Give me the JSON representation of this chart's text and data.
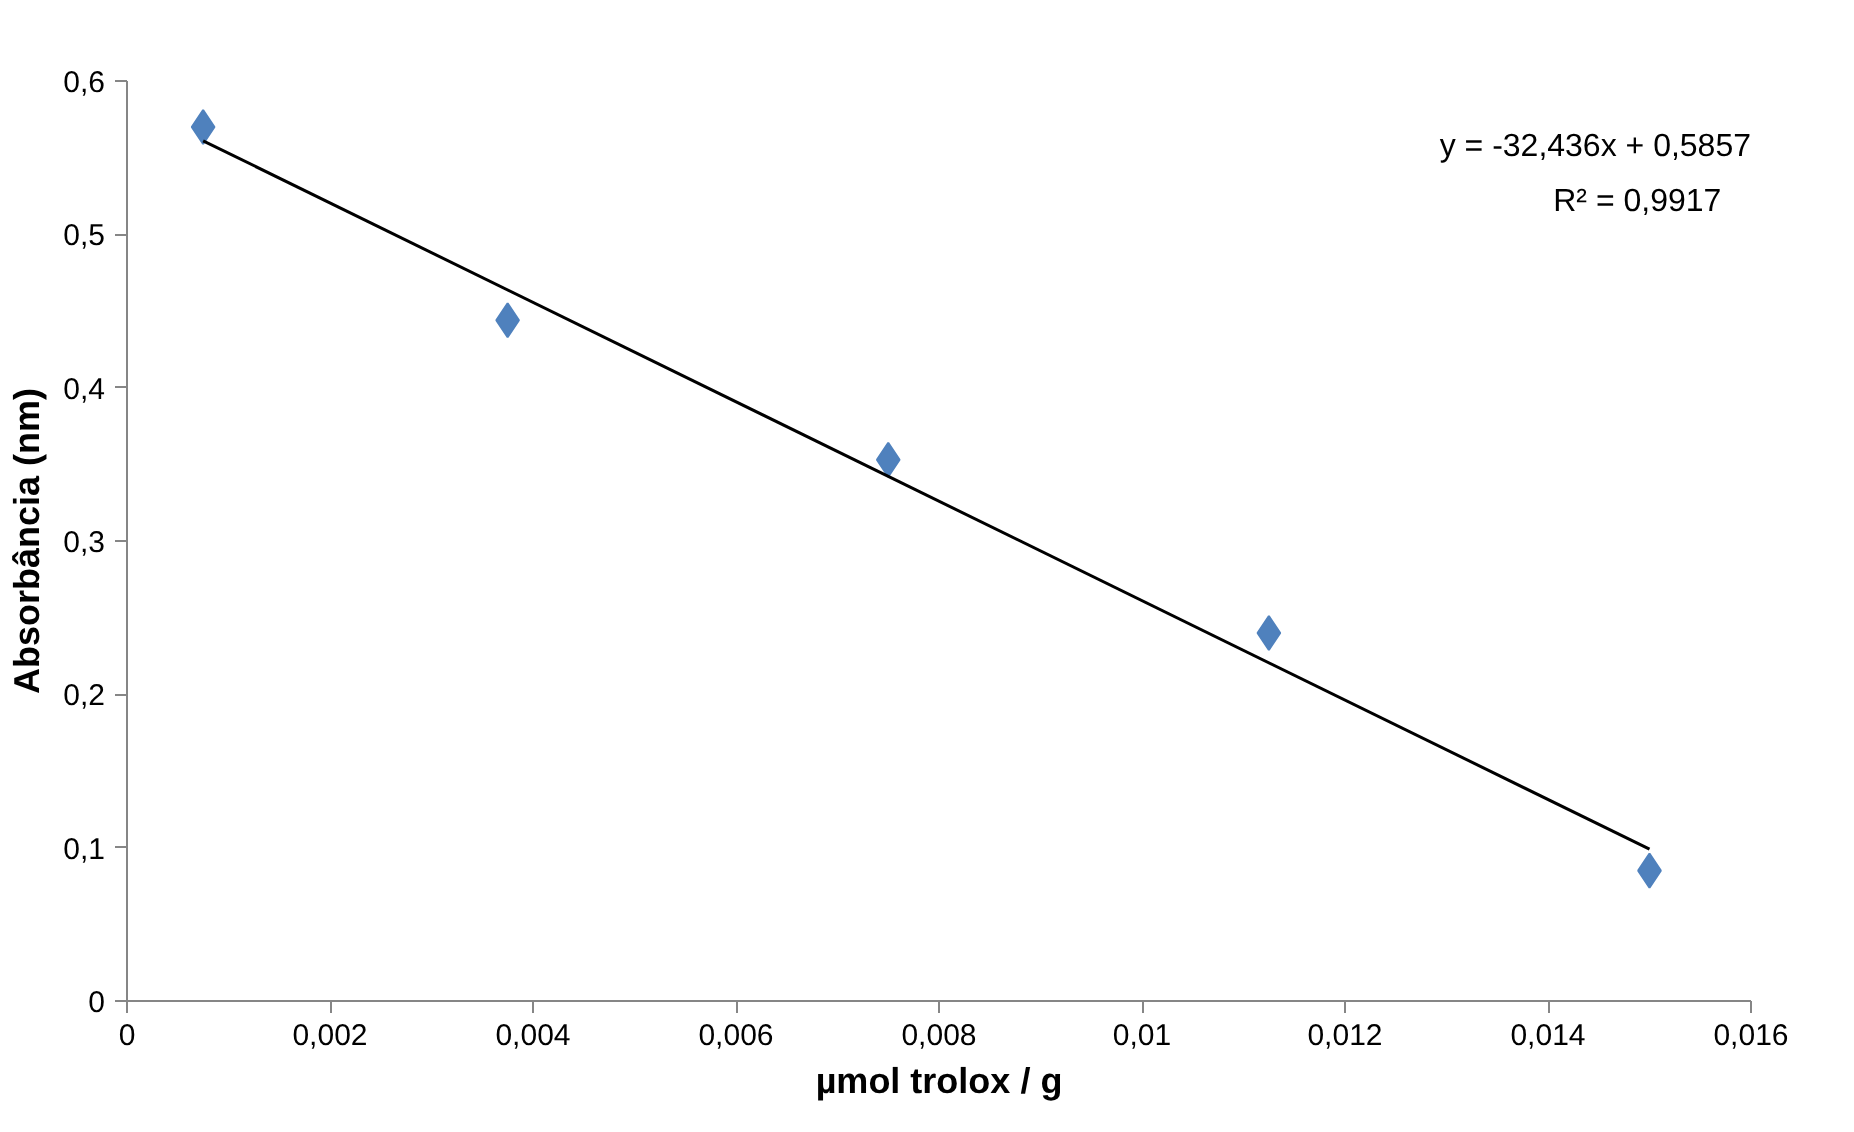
{
  "chart_data": {
    "type": "scatter",
    "xlabel": "µmol trolox / g",
    "ylabel": "Absorbância (nm)",
    "annotations": [
      "y = -32,436x + 0,5857",
      "R² = 0,9917"
    ],
    "xlim": [
      0,
      0.016
    ],
    "ylim": [
      0,
      0.6
    ],
    "xticks": [
      0,
      {
        "value": 0.002,
        "label": "0,002"
      },
      {
        "value": 0.004,
        "label": "0,004"
      },
      {
        "value": 0.006,
        "label": "0,006"
      },
      {
        "value": 0.008,
        "label": "0,008"
      },
      {
        "value": 0.01,
        "label": "0,01"
      },
      {
        "value": 0.012,
        "label": "0,012"
      },
      {
        "value": 0.014,
        "label": "0,014"
      },
      {
        "value": 0.016,
        "label": "0,016"
      }
    ],
    "yticks": [
      0,
      {
        "value": 0.1,
        "label": "0,1"
      },
      {
        "value": 0.2,
        "label": "0,2"
      },
      {
        "value": 0.3,
        "label": "0,3"
      },
      {
        "value": 0.4,
        "label": "0,4"
      },
      {
        "value": 0.5,
        "label": "0,5"
      },
      {
        "value": 0.6,
        "label": "0,6"
      }
    ],
    "grid": false,
    "series": [
      {
        "color": "#4f81bd",
        "marker": "diamond",
        "x": [
          0.00075,
          0.00375,
          0.0075,
          0.01125,
          0.015
        ],
        "values": [
          0.57,
          0.444,
          0.353,
          0.24,
          0.085
        ]
      },
      {
        "type": "line",
        "color": "#000000",
        "marker": "none",
        "line_style": "solid",
        "x": [
          0.00075,
          0.015
        ],
        "values": [
          0.561,
          0.099
        ]
      }
    ]
  }
}
